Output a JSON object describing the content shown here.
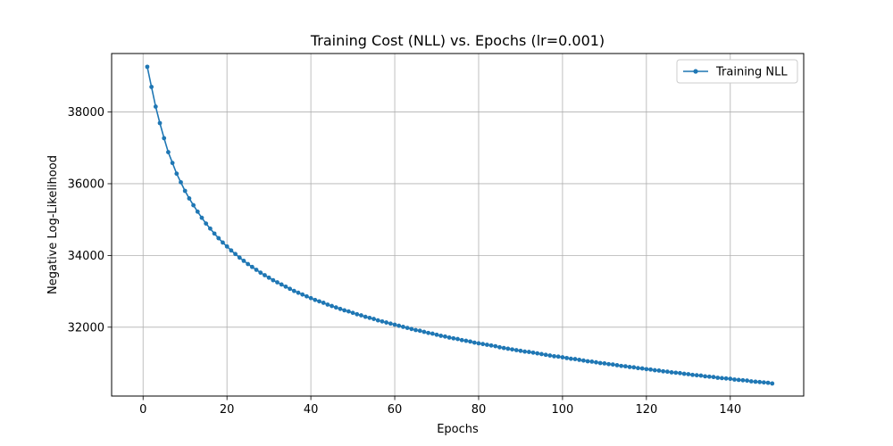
{
  "chart_data": {
    "type": "line",
    "title": "Training Cost (NLL) vs. Epochs (lr=0.001)",
    "xlabel": "Epochs",
    "ylabel": "Negative Log-Likelihood",
    "xlim": [
      -7.5,
      157.5
    ],
    "ylim": [
      30080,
      39630
    ],
    "xticks": [
      0,
      20,
      40,
      60,
      80,
      100,
      120,
      140
    ],
    "yticks": [
      32000,
      34000,
      36000,
      38000
    ],
    "grid": true,
    "legend_position": "top-right",
    "series": [
      {
        "name": "Training NLL",
        "color": "#1f77b4",
        "marker": "circle",
        "x": [
          1,
          2,
          3,
          4,
          5,
          6,
          7,
          8,
          9,
          10,
          11,
          12,
          13,
          14,
          15,
          16,
          17,
          18,
          19,
          20,
          21,
          22,
          23,
          24,
          25,
          26,
          27,
          28,
          29,
          30,
          31,
          32,
          33,
          34,
          35,
          36,
          37,
          38,
          39,
          40,
          41,
          42,
          43,
          44,
          45,
          46,
          47,
          48,
          49,
          50,
          51,
          52,
          53,
          54,
          55,
          56,
          57,
          58,
          59,
          60,
          61,
          62,
          63,
          64,
          65,
          66,
          67,
          68,
          69,
          70,
          71,
          72,
          73,
          74,
          75,
          76,
          77,
          78,
          79,
          80,
          81,
          82,
          83,
          84,
          85,
          86,
          87,
          88,
          89,
          90,
          91,
          92,
          93,
          94,
          95,
          96,
          97,
          98,
          99,
          100,
          101,
          102,
          103,
          104,
          105,
          106,
          107,
          108,
          109,
          110,
          111,
          112,
          113,
          114,
          115,
          116,
          117,
          118,
          119,
          120,
          121,
          122,
          123,
          124,
          125,
          126,
          127,
          128,
          129,
          130,
          131,
          132,
          133,
          134,
          135,
          136,
          137,
          138,
          139,
          140,
          141,
          142,
          143,
          144,
          145,
          146,
          147,
          148,
          149,
          150
        ],
        "values": [
          39260,
          38700,
          38150,
          37690,
          37270,
          36880,
          36580,
          36280,
          36040,
          35800,
          35590,
          35400,
          35220,
          35050,
          34890,
          34750,
          34610,
          34480,
          34360,
          34250,
          34140,
          34040,
          33940,
          33850,
          33760,
          33680,
          33600,
          33520,
          33450,
          33380,
          33310,
          33250,
          33190,
          33130,
          33070,
          33010,
          32960,
          32910,
          32860,
          32810,
          32760,
          32720,
          32680,
          32630,
          32590,
          32550,
          32510,
          32470,
          32440,
          32400,
          32360,
          32330,
          32290,
          32260,
          32230,
          32190,
          32160,
          32130,
          32100,
          32070,
          32040,
          32010,
          31980,
          31950,
          31920,
          31900,
          31870,
          31840,
          31820,
          31790,
          31760,
          31740,
          31710,
          31690,
          31670,
          31640,
          31620,
          31600,
          31570,
          31550,
          31530,
          31510,
          31490,
          31470,
          31440,
          31420,
          31400,
          31380,
          31360,
          31340,
          31320,
          31310,
          31290,
          31270,
          31250,
          31230,
          31210,
          31190,
          31180,
          31160,
          31140,
          31120,
          31110,
          31090,
          31070,
          31050,
          31040,
          31020,
          31000,
          30990,
          30970,
          30960,
          30940,
          30920,
          30910,
          30890,
          30880,
          30860,
          30850,
          30830,
          30820,
          30800,
          30790,
          30770,
          30760,
          30740,
          30730,
          30720,
          30700,
          30690,
          30670,
          30660,
          30650,
          30630,
          30620,
          30610,
          30590,
          30580,
          30570,
          30560,
          30540,
          30530,
          30520,
          30510,
          30490,
          30480,
          30470,
          30460,
          30450,
          30430
        ]
      }
    ]
  }
}
